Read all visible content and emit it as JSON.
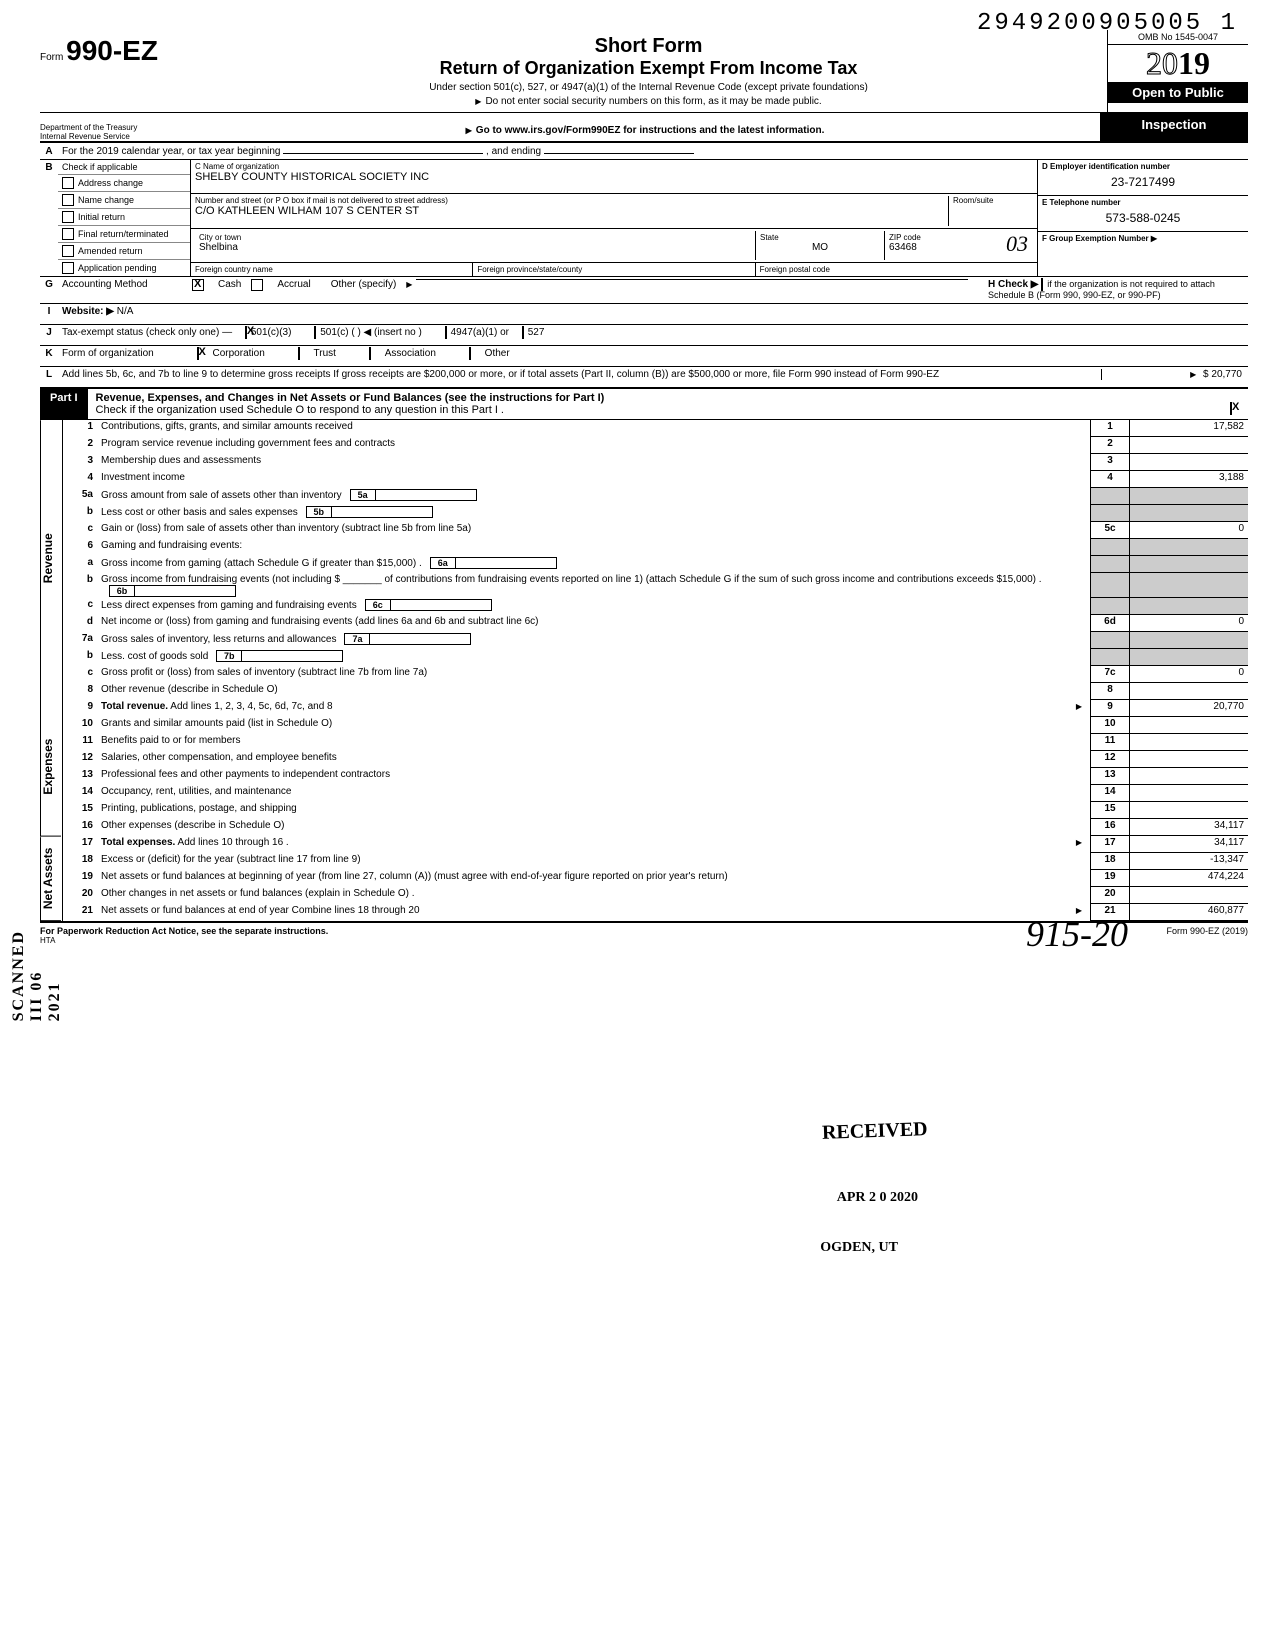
{
  "doc_number": "2949200905005 1",
  "form": {
    "label": "Form",
    "number": "990-EZ"
  },
  "title": {
    "short": "Short Form",
    "main": "Return of Organization Exempt From Income Tax",
    "sub1": "Under section 501(c), 527, or 4947(a)(1) of the Internal Revenue Code (except private foundations)",
    "sub2": "Do not enter social security numbers on this form, as it may be made public.",
    "sub3": "Go to www.irs.gov/Form990EZ for instructions and the latest information."
  },
  "omb": "OMB No 1545-0047",
  "year": "2019",
  "open_public": "Open to Public",
  "inspection": "Inspection",
  "dept": "Department of the Treasury\nInternal Revenue Service",
  "line_a": "For the 2019 calendar year, or tax year beginning",
  "line_a_end": ", and ending",
  "line_b": "Check if applicable",
  "checks": [
    "Address change",
    "Name change",
    "Initial return",
    "Final return/terminated",
    "Amended return",
    "Application pending"
  ],
  "c_label": "C  Name of organization",
  "org_name": "SHELBY COUNTY HISTORICAL SOCIETY INC",
  "addr_label": "Number and street (or P O  box if mail is not delivered to street address)",
  "room_label": "Room/suite",
  "addr": "C/O KATHLEEN WILHAM 107 S CENTER ST",
  "city_label": "City or town",
  "state_label": "State",
  "zip_label": "ZIP code",
  "city": "Shelbina",
  "state": "MO",
  "zip": "63468",
  "zip_hand": "03",
  "foreign_country": "Foreign country name",
  "foreign_province": "Foreign province/state/county",
  "foreign_postal": "Foreign postal code",
  "d_label": "D  Employer identification number",
  "ein": "23-7217499",
  "e_label": "E  Telephone number",
  "phone": "573-588-0245",
  "f_label": "F  Group Exemption Number ▶",
  "g_label": "Accounting Method",
  "g_opts": [
    "Cash",
    "Accrual",
    "Other (specify)"
  ],
  "h_label": "H Check ▶",
  "h_text": "if the organization is not required to attach Schedule B (Form 990, 990-EZ, or 990-PF)",
  "i_label": "Website: ▶",
  "website": "N/A",
  "j_label": "Tax-exempt status (check only one) —",
  "j_opts": [
    "501(c)(3)",
    "501(c) (",
    ") ◀ (insert no )",
    "4947(a)(1) or",
    "527"
  ],
  "k_label": "Form of organization",
  "k_opts": [
    "Corporation",
    "Trust",
    "Association",
    "Other"
  ],
  "l_text": "Add lines 5b, 6c, and 7b to line 9 to determine gross receipts  If gross receipts are $200,000 or more, or if total assets (Part II, column (B)) are $500,000 or more, file Form 990 instead of Form 990-EZ",
  "l_amount": "20,770",
  "part1": {
    "label": "Part I",
    "title": "Revenue, Expenses, and Changes in Net Assets or Fund Balances (see the instructions for Part I)",
    "check_text": "Check if the organization used Schedule O to respond to any question in this Part I ."
  },
  "vert_labels": [
    "Revenue",
    "Expenses",
    "Net Assets"
  ],
  "scanned_label": "SCANNED  III  06 2021",
  "lines": [
    {
      "n": "1",
      "d": "Contributions, gifts, grants, and similar amounts received",
      "num": "1",
      "amt": "17,582"
    },
    {
      "n": "2",
      "d": "Program service revenue including government fees and contracts",
      "num": "2",
      "amt": ""
    },
    {
      "n": "3",
      "d": "Membership dues and assessments",
      "num": "3",
      "amt": ""
    },
    {
      "n": "4",
      "d": "Investment income",
      "num": "4",
      "amt": "3,188"
    },
    {
      "n": "5a",
      "d": "Gross amount from sale of assets other than inventory",
      "sub": "5a"
    },
    {
      "n": "b",
      "d": "Less  cost or other basis and sales expenses",
      "sub": "5b"
    },
    {
      "n": "c",
      "d": "Gain or (loss) from sale of assets other than inventory (subtract line 5b from line 5a)",
      "num": "5c",
      "amt": "0"
    },
    {
      "n": "6",
      "d": "Gaming and fundraising events:"
    },
    {
      "n": "a",
      "d": "Gross income from gaming (attach Schedule G if greater than $15,000) .",
      "sub": "6a"
    },
    {
      "n": "b",
      "d": "Gross income from fundraising events (not including    $ _______ of contributions from fundraising events reported on line 1) (attach Schedule G if the sum of such gross income and contributions exceeds $15,000) .",
      "sub": "6b"
    },
    {
      "n": "c",
      "d": "Less  direct expenses from gaming and fundraising events",
      "sub": "6c"
    },
    {
      "n": "d",
      "d": "Net income or (loss) from gaming and fundraising events (add lines 6a and 6b and subtract line 6c)",
      "num": "6d",
      "amt": "0"
    },
    {
      "n": "7a",
      "d": "Gross sales of inventory, less returns and allowances",
      "sub": "7a"
    },
    {
      "n": "b",
      "d": "Less. cost of goods sold",
      "sub": "7b"
    },
    {
      "n": "c",
      "d": "Gross profit or (loss) from sales of inventory (subtract line 7b from line 7a)",
      "num": "7c",
      "amt": "0"
    },
    {
      "n": "8",
      "d": "Other revenue (describe in Schedule O)",
      "num": "8",
      "amt": ""
    },
    {
      "n": "9",
      "d": "Total revenue. Add lines 1, 2, 3, 4, 5c, 6d, 7c, and 8",
      "num": "9",
      "amt": "20,770",
      "bold": true,
      "arrow": true
    },
    {
      "n": "10",
      "d": "Grants and similar amounts paid (list in Schedule O)",
      "num": "10",
      "amt": ""
    },
    {
      "n": "11",
      "d": "Benefits paid to or for members",
      "num": "11",
      "amt": ""
    },
    {
      "n": "12",
      "d": "Salaries, other compensation, and employee benefits",
      "num": "12",
      "amt": ""
    },
    {
      "n": "13",
      "d": "Professional fees and other payments to independent contractors",
      "num": "13",
      "amt": ""
    },
    {
      "n": "14",
      "d": "Occupancy, rent, utilities, and maintenance",
      "num": "14",
      "amt": ""
    },
    {
      "n": "15",
      "d": "Printing, publications, postage, and shipping",
      "num": "15",
      "amt": ""
    },
    {
      "n": "16",
      "d": "Other expenses (describe in Schedule O)",
      "num": "16",
      "amt": "34,117"
    },
    {
      "n": "17",
      "d": "Total expenses. Add lines 10 through 16 .",
      "num": "17",
      "amt": "34,117",
      "bold": true,
      "arrow": true
    },
    {
      "n": "18",
      "d": "Excess or (deficit) for the year (subtract line 17 from line 9)",
      "num": "18",
      "amt": "-13,347"
    },
    {
      "n": "19",
      "d": "Net assets or fund balances at beginning of year (from line 27, column (A)) (must agree with end-of-year figure reported on prior year's return)",
      "num": "19",
      "amt": "474,224"
    },
    {
      "n": "20",
      "d": "Other changes in net assets or fund balances (explain in Schedule O) .",
      "num": "20",
      "amt": ""
    },
    {
      "n": "21",
      "d": "Net assets or fund balances at end of year  Combine lines 18 through 20",
      "num": "21",
      "amt": "460,877",
      "arrow": true
    }
  ],
  "footer": {
    "left": "For Paperwork Reduction Act Notice, see the separate instructions.",
    "hta": "HTA",
    "right": "Form 990-EZ (2019)"
  },
  "stamps": {
    "received": "RECEIVED",
    "date": "APR 2 0 2020",
    "ogden": "OGDEN, UT"
  },
  "signature": "915-20"
}
